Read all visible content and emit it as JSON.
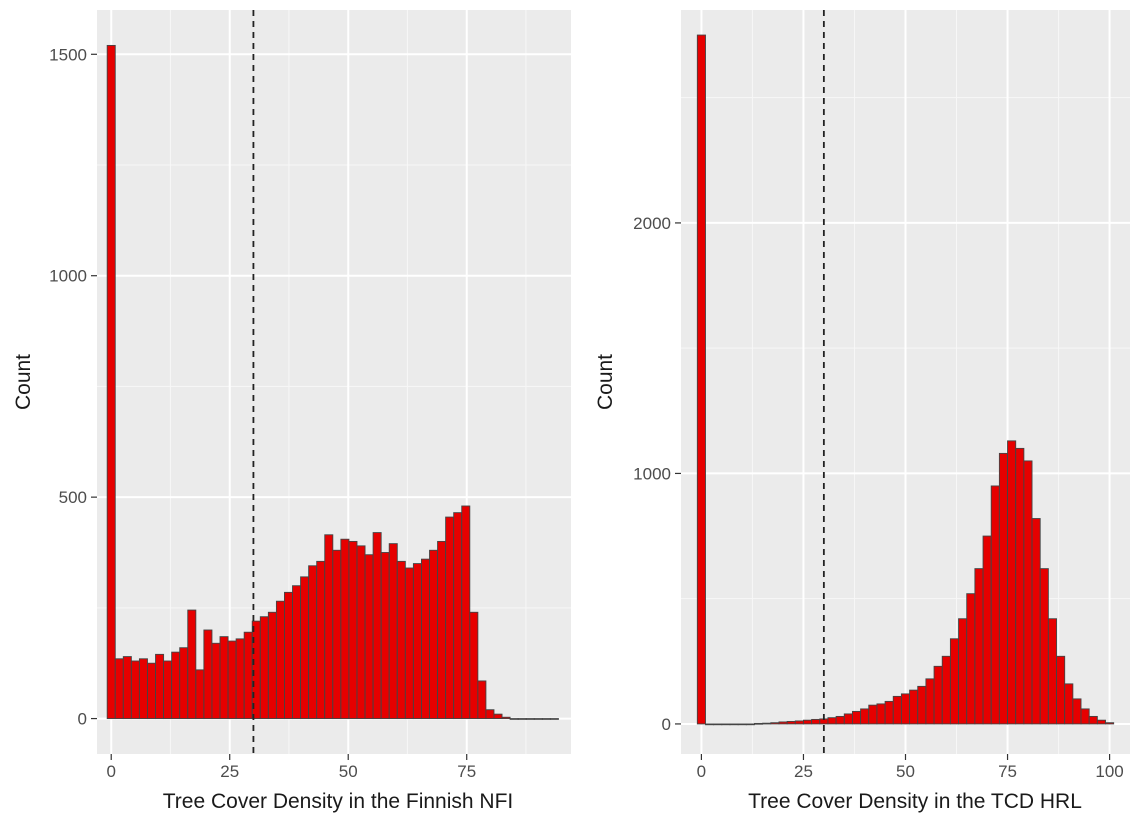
{
  "chart_data": [
    {
      "type": "bar",
      "histogram": true,
      "xlabel": "Tree Cover Density in the Finnish NFI",
      "ylabel": "Count",
      "xlim": [
        -3,
        97
      ],
      "ylim": [
        -80,
        1600
      ],
      "xticks": [
        0,
        25,
        50,
        75
      ],
      "yticks": [
        0,
        500,
        1000,
        1500
      ],
      "grid": true,
      "fill_color": "#e60000",
      "outline_color": "#444444",
      "panel_color": "#ebebeb",
      "reference_line": {
        "x": 30,
        "style": "dashed"
      },
      "bin_width": 1.7,
      "bin_starts": [
        -0.85,
        0.85,
        2.55,
        4.25,
        5.95,
        7.65,
        9.35,
        11.05,
        12.75,
        14.45,
        16.15,
        17.85,
        19.55,
        21.25,
        22.95,
        24.65,
        26.35,
        28.05,
        29.75,
        31.45,
        33.15,
        34.85,
        36.55,
        38.25,
        39.95,
        41.65,
        43.35,
        45.05,
        46.75,
        48.45,
        50.15,
        51.85,
        53.55,
        55.25,
        56.95,
        58.65,
        60.35,
        62.05,
        63.75,
        65.45,
        67.15,
        68.85,
        70.55,
        72.25,
        73.95,
        75.65,
        77.35,
        79.05,
        80.75,
        82.45,
        84.15,
        85.85,
        87.55,
        89.25,
        90.95,
        92.65
      ],
      "values": [
        1520,
        135,
        140,
        130,
        135,
        125,
        145,
        130,
        150,
        160,
        245,
        110,
        200,
        170,
        185,
        175,
        180,
        195,
        220,
        230,
        240,
        265,
        285,
        300,
        320,
        345,
        355,
        415,
        380,
        405,
        400,
        390,
        370,
        420,
        375,
        395,
        355,
        340,
        350,
        360,
        380,
        400,
        455,
        465,
        480,
        240,
        85,
        20,
        10,
        3,
        0,
        0,
        0,
        0,
        0,
        0
      ]
    },
    {
      "type": "bar",
      "histogram": true,
      "xlabel": "Tree Cover Density in the TCD HRL",
      "ylabel": "Count",
      "xlim": [
        -5,
        105
      ],
      "ylim": [
        -120,
        2850
      ],
      "xticks": [
        0,
        25,
        50,
        75,
        100
      ],
      "yticks": [
        0,
        1000,
        2000
      ],
      "grid": true,
      "fill_color": "#e60000",
      "outline_color": "#444444",
      "panel_color": "#ebebeb",
      "reference_line": {
        "x": 30,
        "style": "dashed"
      },
      "bin_width": 2,
      "bin_starts": [
        -1,
        1,
        3,
        5,
        7,
        9,
        11,
        13,
        15,
        17,
        19,
        21,
        23,
        25,
        27,
        29,
        31,
        33,
        35,
        37,
        39,
        41,
        43,
        45,
        47,
        49,
        51,
        53,
        55,
        57,
        59,
        61,
        63,
        65,
        67,
        69,
        71,
        73,
        75,
        77,
        79,
        81,
        83,
        85,
        87,
        89,
        91,
        93,
        95,
        97,
        99
      ],
      "values": [
        2750,
        0,
        0,
        0,
        0,
        0,
        0,
        2,
        3,
        5,
        8,
        10,
        12,
        15,
        18,
        20,
        25,
        30,
        40,
        50,
        60,
        75,
        80,
        90,
        110,
        120,
        135,
        150,
        180,
        230,
        270,
        340,
        420,
        520,
        620,
        750,
        950,
        1080,
        1130,
        1100,
        1050,
        820,
        620,
        420,
        270,
        160,
        100,
        60,
        30,
        15,
        5
      ]
    }
  ]
}
